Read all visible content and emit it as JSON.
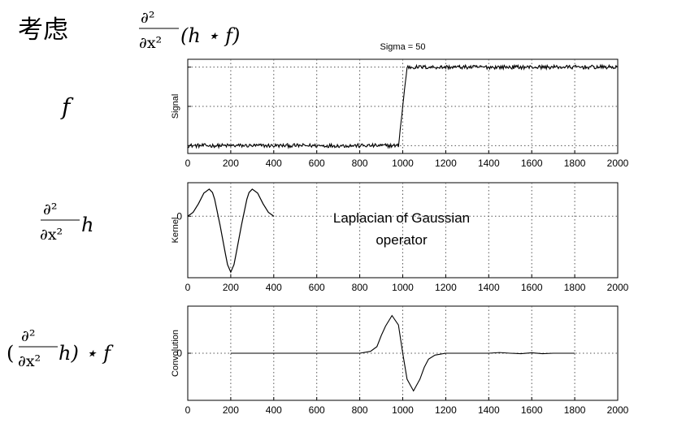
{
  "header": {
    "title_text": "考虑",
    "top_formula": {
      "numerator": "∂²",
      "denominator": "∂x²",
      "tail": "(h ⋆ f)"
    }
  },
  "rows": [
    {
      "left_label": {
        "type": "simple",
        "text": "f"
      }
    },
    {
      "left_label": {
        "type": "fraction",
        "numerator": "∂²",
        "denominator": "∂x²",
        "tail": "h"
      }
    },
    {
      "left_label": {
        "type": "convolution",
        "open": "(",
        "numerator": "∂²",
        "denominator": "∂x²",
        "tail": "h) ⋆ f"
      }
    }
  ],
  "annotation": {
    "text_line1": "Laplacian of Gaussian",
    "text_line2": "operator"
  },
  "chart_data": [
    {
      "type": "line",
      "title": "Sigma = 50",
      "xlabel": "",
      "ylabel": "Signal",
      "xlim": [
        0,
        2000
      ],
      "x_ticks": [
        0,
        200,
        400,
        600,
        800,
        1000,
        1200,
        1400,
        1600,
        1800,
        2000
      ],
      "y_ticks": [
        0,
        0.5,
        1
      ],
      "y_tick_labels": [
        "",
        "",
        ""
      ],
      "ylim": [
        -0.1,
        1.1
      ],
      "grid": true,
      "series": [
        {
          "name": "",
          "x": [
            0,
            980,
            1000,
            1020,
            2000
          ],
          "y": [
            0,
            0,
            0.5,
            1,
            1
          ]
        }
      ],
      "noise": true
    },
    {
      "type": "line",
      "title": "",
      "xlabel": "",
      "ylabel": "Kernel",
      "xlim": [
        0,
        2000
      ],
      "x_ticks": [
        0,
        200,
        400,
        600,
        800,
        1000,
        1200,
        1400,
        1600,
        1800,
        2000
      ],
      "y_ticks": [
        0
      ],
      "y_tick_labels": [
        "0"
      ],
      "ylim": [
        -2.2,
        1.2
      ],
      "grid": true,
      "series": [
        {
          "name": "",
          "x": [
            0,
            25,
            50,
            75,
            100,
            115,
            125,
            150,
            175,
            185,
            200,
            215,
            225,
            250,
            275,
            285,
            300,
            325,
            350,
            375,
            400
          ],
          "y": [
            0.0,
            0.14,
            0.45,
            0.83,
            0.97,
            0.85,
            0.61,
            -0.31,
            -1.34,
            -1.73,
            -2.0,
            -1.73,
            -1.34,
            -0.31,
            0.61,
            0.85,
            0.97,
            0.83,
            0.45,
            0.14,
            0.0
          ]
        }
      ]
    },
    {
      "type": "line",
      "title": "",
      "xlabel": "",
      "ylabel": "Convolution",
      "xlim": [
        0,
        2000
      ],
      "x_ticks": [
        0,
        200,
        400,
        600,
        800,
        1000,
        1200,
        1400,
        1600,
        1800,
        2000
      ],
      "y_ticks": [
        0
      ],
      "y_tick_labels": [
        "0"
      ],
      "ylim": [
        -2.0,
        2.0
      ],
      "grid": true,
      "series": [
        {
          "name": "",
          "x": [
            200,
            300,
            400,
            500,
            600,
            700,
            800,
            850,
            880,
            900,
            920,
            950,
            980,
            1000,
            1020,
            1050,
            1080,
            1100,
            1120,
            1150,
            1200,
            1300,
            1400,
            1450,
            1500,
            1550,
            1600,
            1650,
            1700,
            1750,
            1800
          ],
          "y": [
            0.0,
            0.0,
            0.0,
            0.0,
            0.0,
            0.0,
            0.0,
            0.08,
            0.28,
            0.75,
            1.15,
            1.6,
            1.2,
            0.0,
            -1.1,
            -1.6,
            -1.1,
            -0.6,
            -0.25,
            -0.08,
            0.0,
            0.0,
            0.0,
            0.03,
            0.0,
            -0.02,
            0.02,
            -0.02,
            0.0,
            0.0,
            0.0
          ]
        }
      ]
    }
  ]
}
